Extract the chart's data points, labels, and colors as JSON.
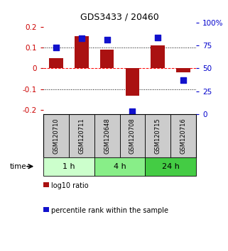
{
  "title": "GDS3433 / 20460",
  "samples": [
    "GSM120710",
    "GSM120711",
    "GSM120648",
    "GSM120708",
    "GSM120715",
    "GSM120716"
  ],
  "log10_ratio": [
    0.05,
    0.155,
    0.09,
    -0.13,
    0.11,
    -0.018
  ],
  "percentile_rank": [
    73,
    83,
    81,
    3,
    84,
    37
  ],
  "groups": [
    {
      "label": "1 h",
      "indices": [
        0,
        1
      ],
      "color": "#ccffcc"
    },
    {
      "label": "4 h",
      "indices": [
        2,
        3
      ],
      "color": "#88ee88"
    },
    {
      "label": "24 h",
      "indices": [
        4,
        5
      ],
      "color": "#44cc44"
    }
  ],
  "bar_color": "#aa1111",
  "dot_color": "#1111cc",
  "ylim_left": [
    -0.22,
    0.22
  ],
  "ylim_right": [
    0,
    100
  ],
  "yticks_left": [
    -0.2,
    -0.1,
    0.0,
    0.1,
    0.2
  ],
  "yticks_right": [
    0,
    25,
    50,
    75,
    100
  ],
  "ytick_labels_left": [
    "-0.2",
    "-0.1",
    "0",
    "0.1",
    "0.2"
  ],
  "ytick_labels_right": [
    "0",
    "25",
    "50",
    "75",
    "100%"
  ],
  "hlines": [
    -0.1,
    0.0,
    0.1
  ],
  "hline_styles": [
    "dotted",
    "dashed",
    "dotted"
  ],
  "hline_colors": [
    "black",
    "red",
    "black"
  ],
  "bar_width": 0.55,
  "dot_size": 28,
  "left_label_color": "#cc0000",
  "right_label_color": "#0000cc",
  "legend_log10": "log10 ratio",
  "legend_percentile": "percentile rank within the sample",
  "time_label": "time",
  "group_colors": [
    "#ccffcc",
    "#88ee88",
    "#44cc44"
  ],
  "sample_bg": "#cccccc"
}
